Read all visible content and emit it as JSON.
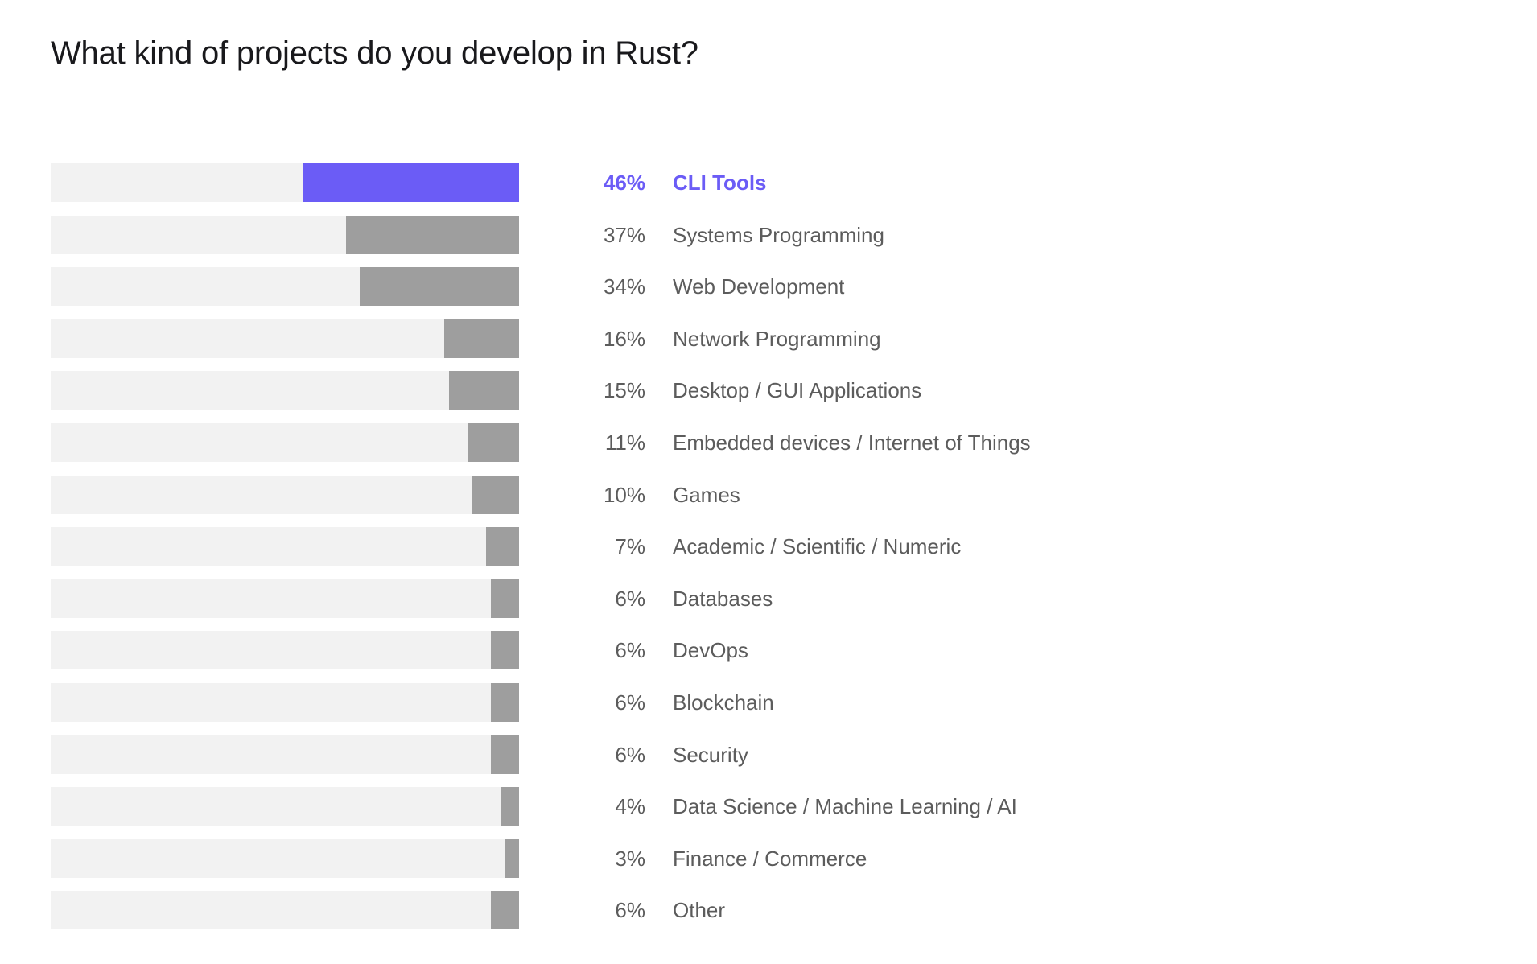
{
  "title": "What kind of projects do you develop in Rust?",
  "colors": {
    "highlight": "#6b5cf6",
    "bar": "#9e9e9e",
    "track": "#f2f2f2",
    "label": "#5c5c5c",
    "title": "#19191c"
  },
  "chart_data": {
    "type": "bar",
    "orientation": "horizontal",
    "title": "What kind of projects do you develop in Rust?",
    "xlim": [
      0,
      100
    ],
    "grid": false,
    "highlighted_category": "CLI Tools",
    "categories": [
      "CLI Tools",
      "Systems Programming",
      "Web Development",
      "Network Programming",
      "Desktop / GUI Applications",
      "Embedded devices / Internet of Things",
      "Games",
      "Academic / Scientific / Numeric",
      "Databases",
      "DevOps",
      "Blockchain",
      "Security",
      "Data Science / Machine Learning / AI",
      "Finance / Commerce",
      "Other"
    ],
    "values": [
      46,
      37,
      34,
      16,
      15,
      11,
      10,
      7,
      6,
      6,
      6,
      6,
      4,
      3,
      6
    ],
    "value_labels": [
      "46%",
      "37%",
      "34%",
      "16%",
      "15%",
      "11%",
      "10%",
      "7%",
      "6%",
      "6%",
      "6%",
      "6%",
      "4%",
      "3%",
      "6%"
    ]
  }
}
